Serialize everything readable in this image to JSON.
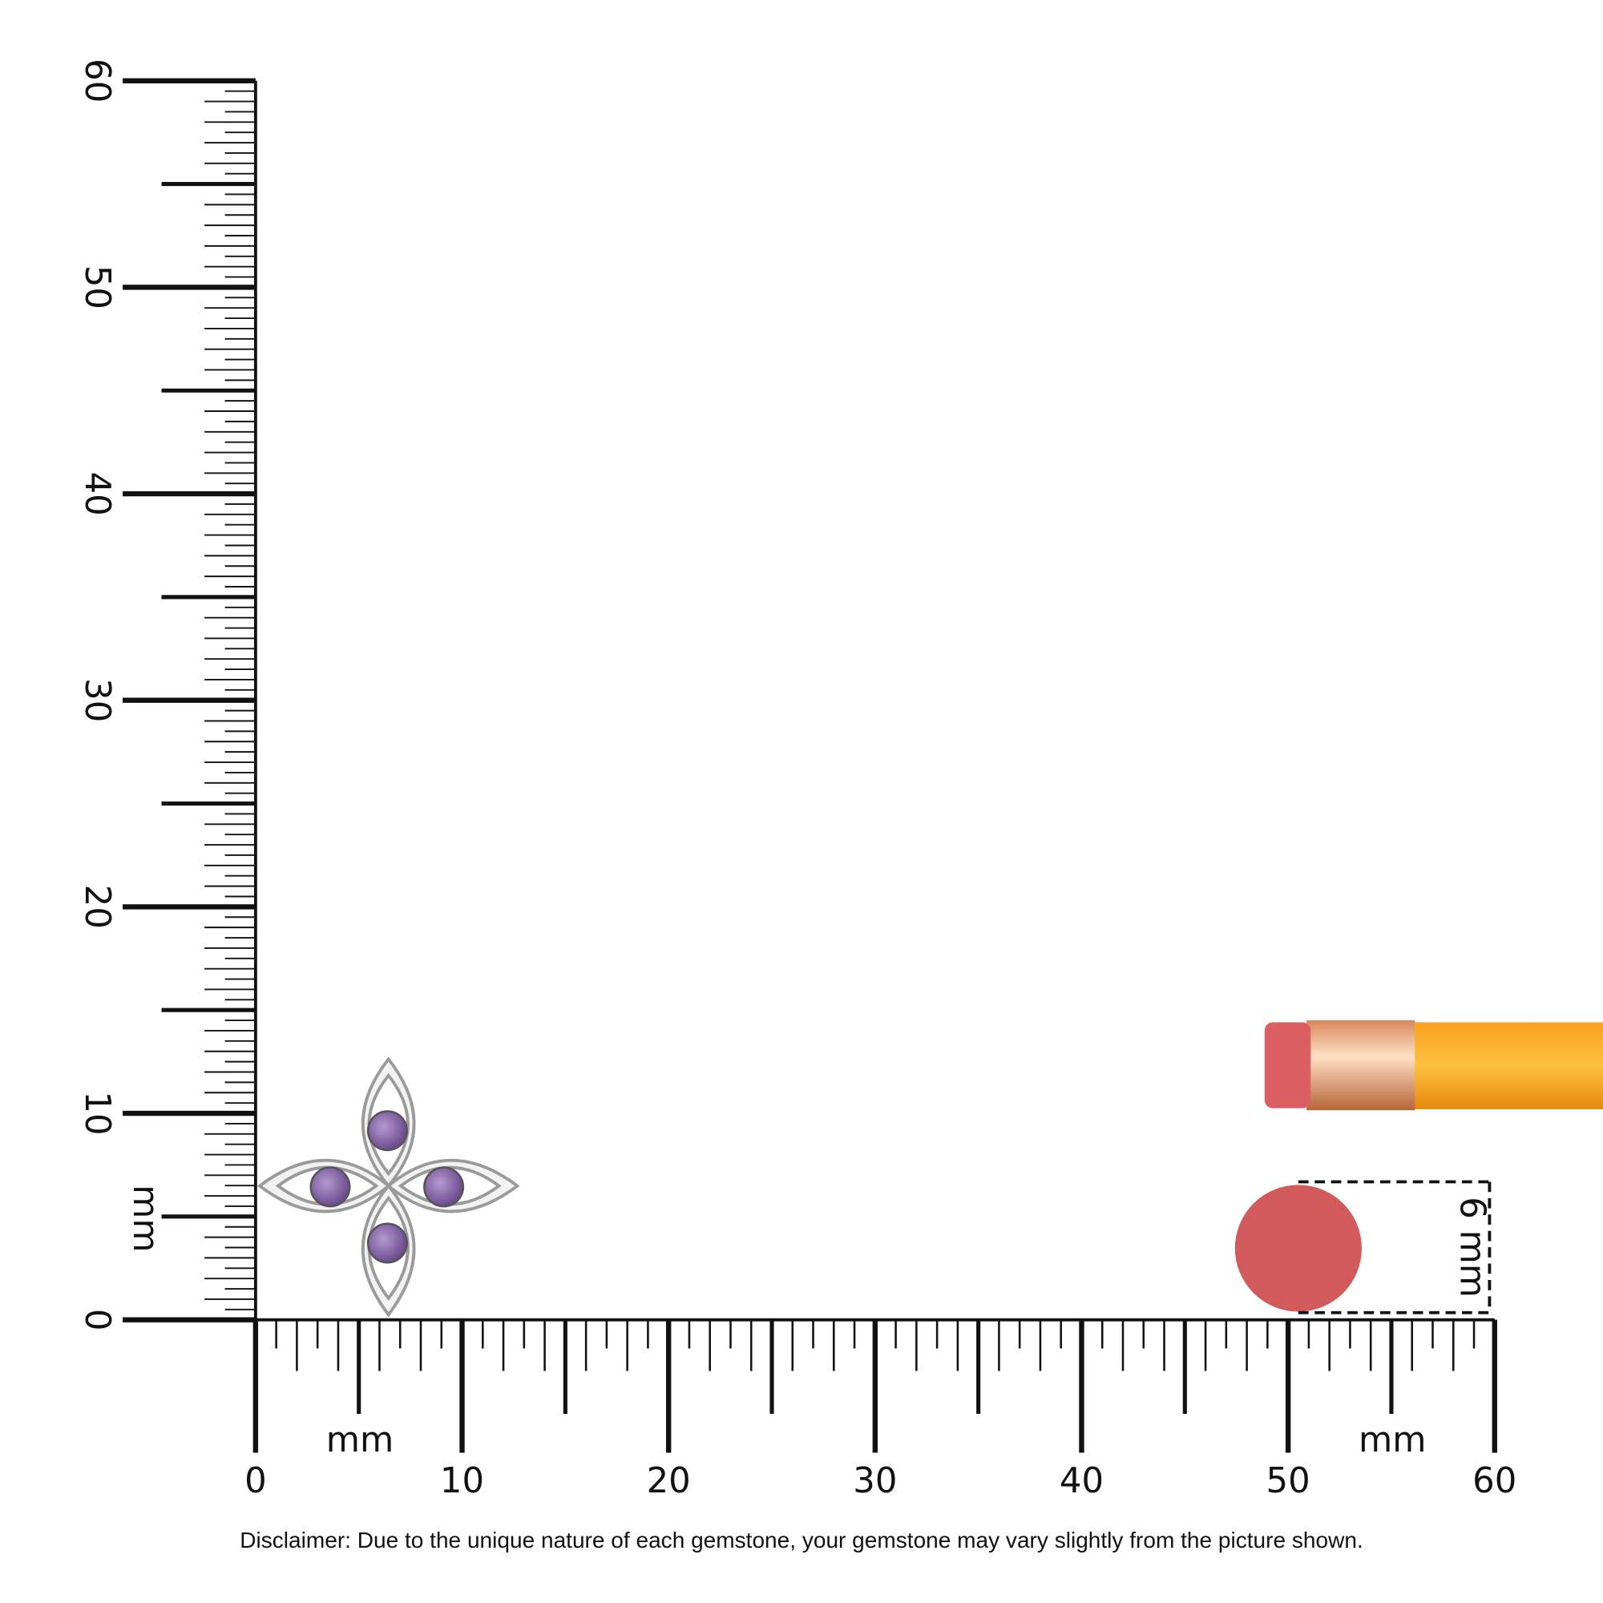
{
  "vertical_ruler": {
    "labels": [
      0,
      10,
      20,
      30,
      40,
      50,
      60
    ],
    "unit": "mm"
  },
  "horizontal_ruler": {
    "labels": [
      0,
      10,
      20,
      30,
      40,
      50,
      60
    ],
    "units": [
      "mm",
      "mm"
    ]
  },
  "eraser_size": "6 mm",
  "disclaimer": "Disclaimer: Due to the unique nature of each gemstone, your gemstone may vary slightly from the picture shown."
}
